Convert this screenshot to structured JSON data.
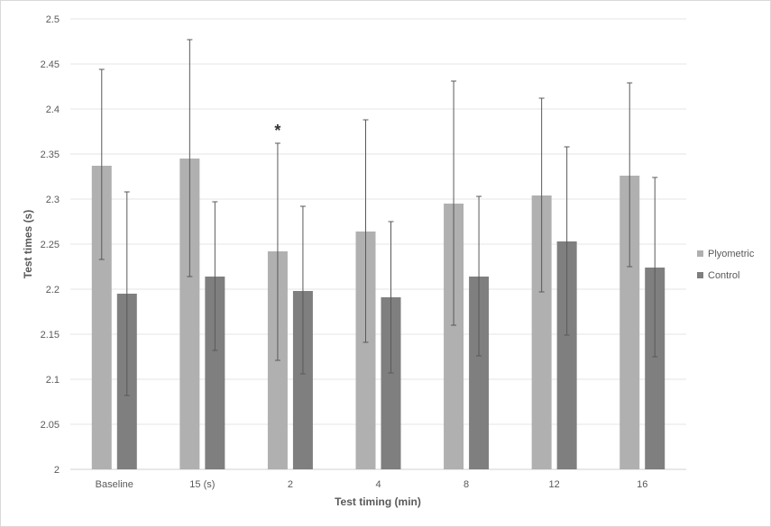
{
  "chart_data": {
    "type": "bar",
    "title": "",
    "xlabel": "Test timing (min)",
    "ylabel": "Test times (s)",
    "ylim": [
      2,
      2.5
    ],
    "yticks": [
      "2",
      "2.05",
      "2.1",
      "2.15",
      "2.2",
      "2.25",
      "2.3",
      "2.35",
      "2.4",
      "2.45",
      "2.5"
    ],
    "grid": true,
    "legend_position": "right",
    "categories": [
      "Baseline",
      "15 (s)",
      "2",
      "4",
      "8",
      "12",
      "16"
    ],
    "series": [
      {
        "name": "Plyometric",
        "color": "#b0b0b0",
        "values": [
          2.337,
          2.345,
          2.242,
          2.264,
          2.295,
          2.304,
          2.326
        ],
        "error_low": [
          2.233,
          2.214,
          2.121,
          2.141,
          2.16,
          2.197,
          2.225
        ],
        "error_high": [
          2.444,
          2.477,
          2.362,
          2.388,
          2.431,
          2.412,
          2.429
        ]
      },
      {
        "name": "Control",
        "color": "#7f7f7f",
        "values": [
          2.195,
          2.214,
          2.198,
          2.191,
          2.214,
          2.253,
          2.224
        ],
        "error_low": [
          2.082,
          2.132,
          2.106,
          2.107,
          2.126,
          2.149,
          2.125
        ],
        "error_high": [
          2.308,
          2.297,
          2.292,
          2.275,
          2.303,
          2.358,
          2.324
        ]
      }
    ],
    "annotations": [
      {
        "text": "*",
        "category": "2",
        "series": "Plyometric"
      }
    ]
  }
}
